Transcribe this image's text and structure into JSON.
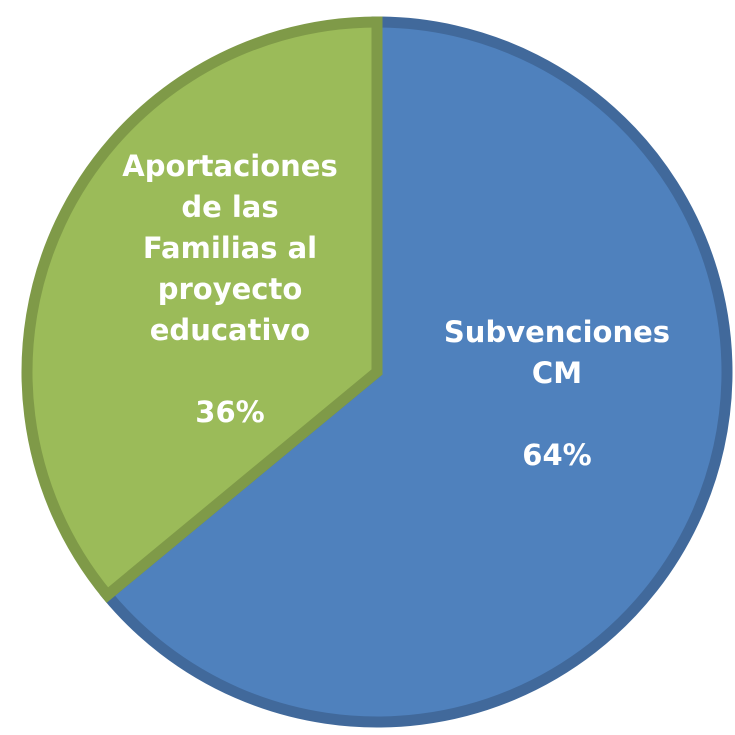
{
  "chart_data": {
    "type": "pie",
    "slices": [
      {
        "label_lines": [
          "Subvenciones",
          "CM"
        ],
        "value": 64,
        "value_label": "64%",
        "fill": "#4f81bd",
        "stroke": "#41699b"
      },
      {
        "label_lines": [
          "Aportaciones",
          "de las",
          "Familias al",
          "proyecto",
          "educativo"
        ],
        "value": 36,
        "value_label": "36%",
        "fill": "#9bbb59",
        "stroke": "#7f9a48"
      }
    ],
    "title": "",
    "legend": "none"
  }
}
